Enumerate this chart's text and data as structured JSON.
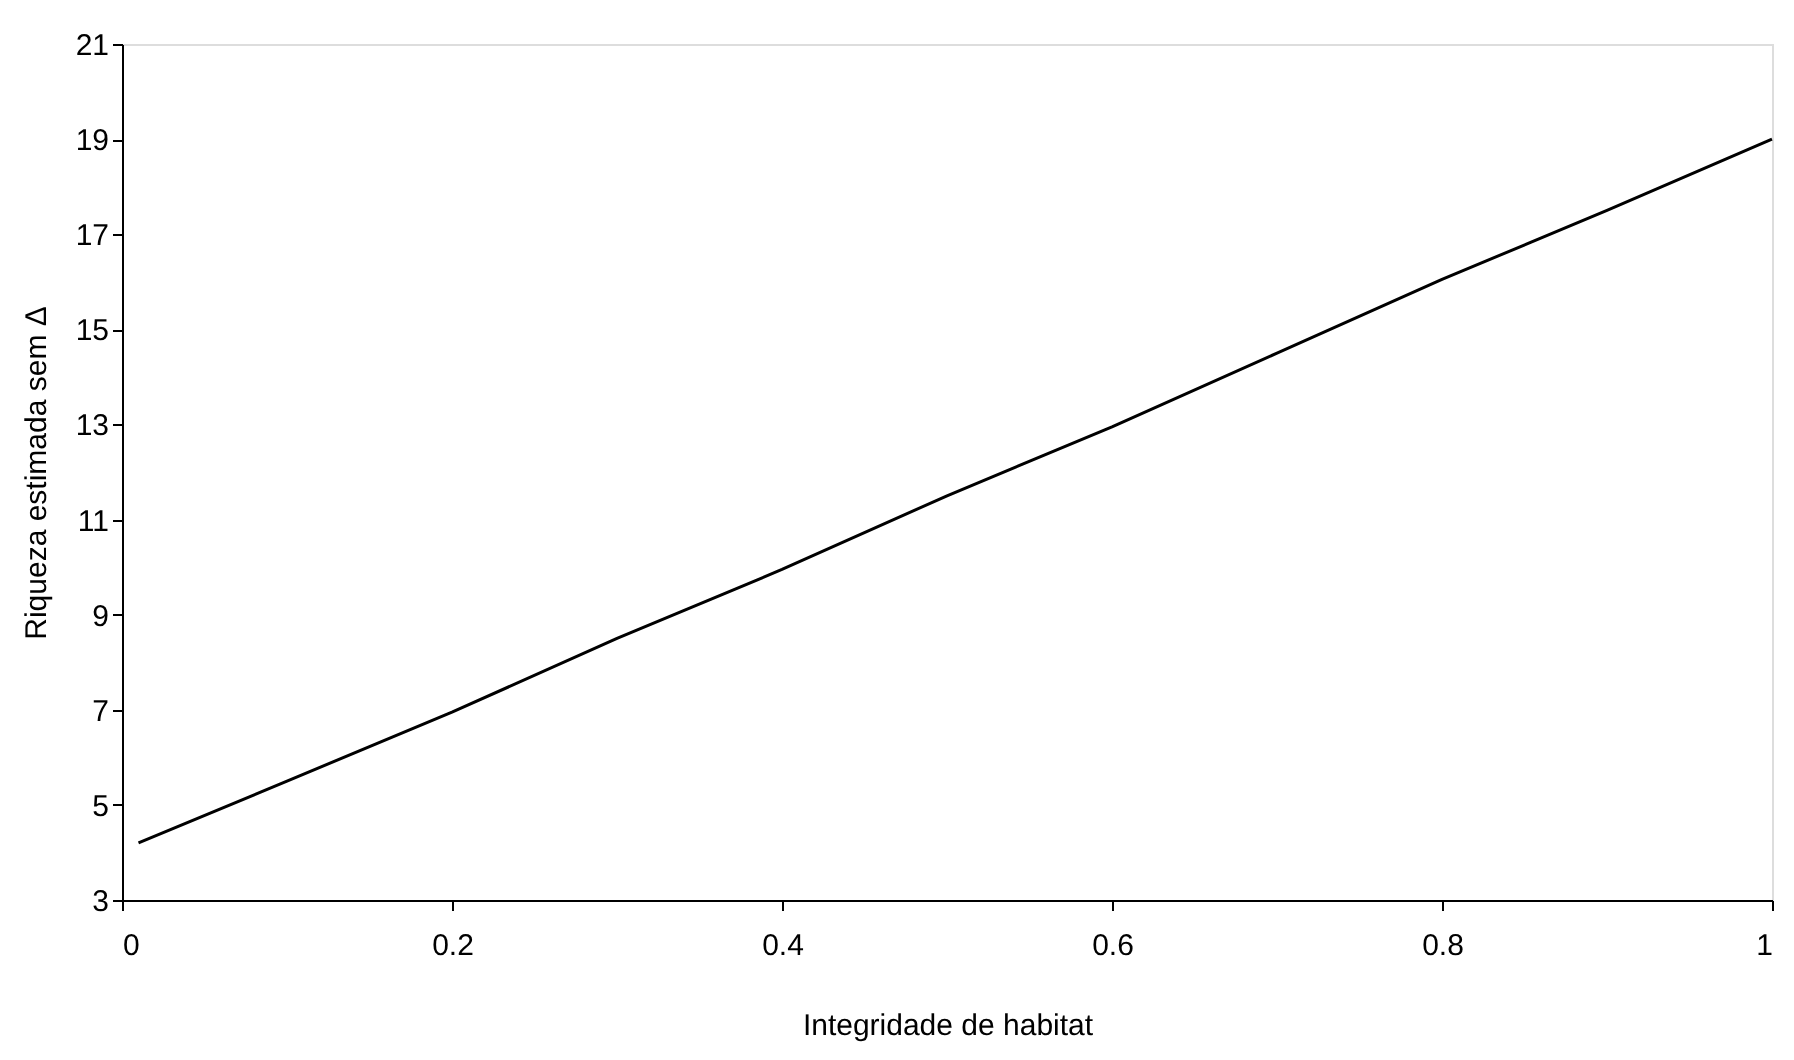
{
  "chart_data": {
    "type": "line",
    "xlabel": "Integridade de habitat",
    "ylabel": "Riqueza estimada sem Δ",
    "x": [
      0.01,
      0.1,
      0.2,
      0.3,
      0.4,
      0.5,
      0.6,
      0.7,
      0.8,
      0.9,
      1.0
    ],
    "series": [
      {
        "color": "#000000",
        "values": [
          4.2,
          5.5,
          6.95,
          8.5,
          9.95,
          11.5,
          12.95,
          14.5,
          16.05,
          17.5,
          19.0
        ]
      }
    ],
    "xlim": [
      0,
      1
    ],
    "xticks": [
      0,
      0.2,
      0.4,
      0.6,
      0.8,
      1
    ],
    "ylim": [
      3,
      21
    ],
    "yticks": [
      3,
      5,
      7,
      9,
      11,
      13,
      15,
      17,
      19,
      21
    ],
    "grid": false,
    "marker": "none",
    "line_style": "solid"
  }
}
